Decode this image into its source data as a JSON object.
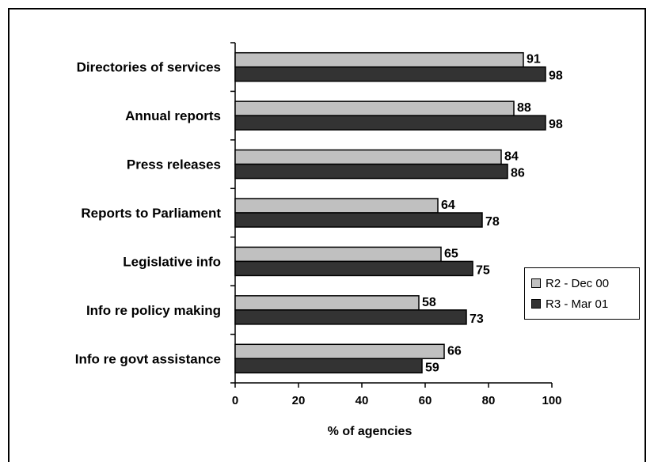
{
  "chart_data": {
    "type": "bar",
    "orientation": "horizontal",
    "title": "",
    "xlabel": "% of agencies",
    "ylabel": "",
    "xlim": [
      0,
      100
    ],
    "xticks": [
      0,
      20,
      40,
      60,
      80,
      100
    ],
    "grid": false,
    "legend_position": "right",
    "categories": [
      "Directories of services",
      "Annual reports",
      "Press releases",
      "Reports to Parliament",
      "Legislative info",
      "Info re policy making",
      "Info re govt assistance"
    ],
    "series": [
      {
        "name": "R2 - Dec 00",
        "color": "#c0c0c0",
        "values": [
          91,
          88,
          84,
          64,
          65,
          58,
          66
        ]
      },
      {
        "name": "R3 - Mar 01",
        "color": "#333333",
        "values": [
          98,
          98,
          86,
          78,
          75,
          73,
          59
        ]
      }
    ]
  }
}
